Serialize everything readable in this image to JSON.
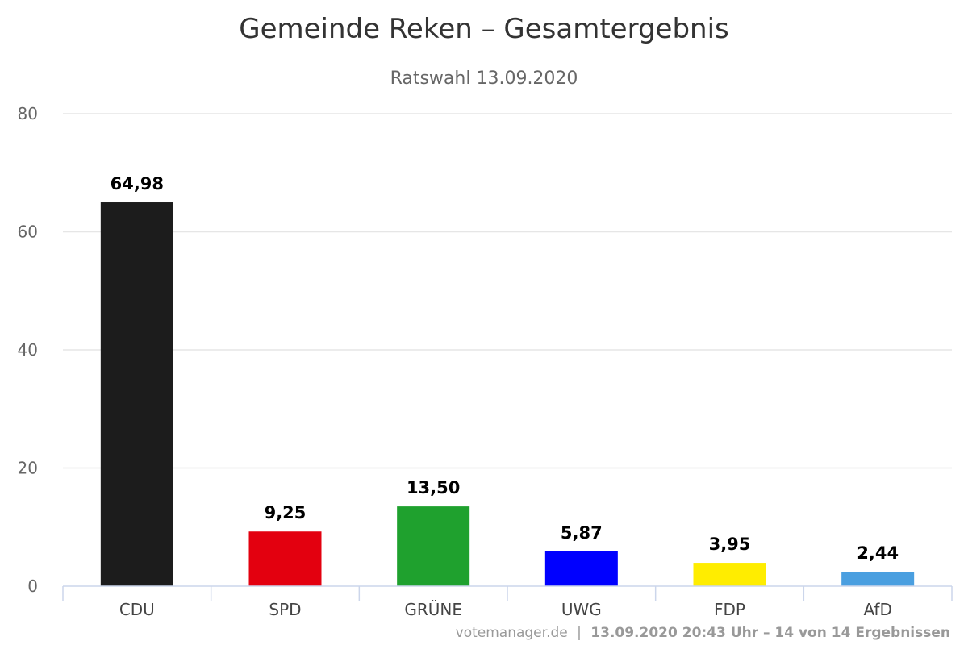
{
  "chart_data": {
    "type": "bar",
    "title": "Gemeinde Reken – Gesamtergebnis",
    "subtitle": "Ratswahl 13.09.2020",
    "categories": [
      "CDU",
      "SPD",
      "GRÜNE",
      "UWG",
      "FDP",
      "AfD"
    ],
    "values": [
      64.98,
      9.25,
      13.5,
      5.87,
      3.95,
      2.44
    ],
    "data_labels": [
      "64,98",
      "9,25",
      "13,50",
      "5,87",
      "3,95",
      "2,44"
    ],
    "colors": [
      "#1c1c1c",
      "#e3000f",
      "#1fa12e",
      "#0000ff",
      "#ffed00",
      "#4a9fe0"
    ],
    "ylim": [
      0,
      80
    ],
    "yticks": [
      0,
      20,
      40,
      60,
      80
    ],
    "grid": true,
    "legend": "none"
  },
  "footer": {
    "source": "votemanager.de",
    "separator": "|",
    "status": "13.09.2020 20:43 Uhr – 14 von 14 Ergebnissen"
  }
}
